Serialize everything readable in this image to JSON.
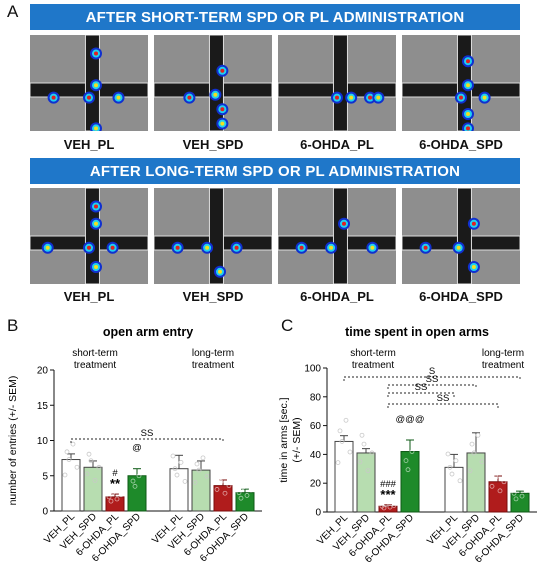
{
  "panel_labels": {
    "a": "A",
    "b": "B",
    "c": "C"
  },
  "top": {
    "banner_short": "AFTER SHORT-TERM SPD OR PL ADMINISTRATION",
    "banner_long": "AFTER LONG-TERM SPD OR PL ADMINISTRATION",
    "labels_short": [
      "VEH_PL",
      "VEH_SPD",
      "6-OHDA_PL",
      "6-OHDA_SPD"
    ],
    "labels_long": [
      "VEH_PL",
      "VEH_SPD",
      "6-OHDA_PL",
      "6-OHDA_SPD"
    ]
  },
  "colors": {
    "veh_pl": "#ffffff",
    "veh_spd": "#b7ddb0",
    "ohda_pl": "#b01c1c",
    "ohda_spd": "#1e8a2a",
    "banner": "#1f77c9"
  },
  "chart_data": [
    {
      "type": "bar",
      "title": "open arm entry",
      "ylabel": "number of entries (+/- SEM)",
      "ylim": [
        0,
        20
      ],
      "yticks": [
        "0",
        "5",
        "10",
        "15",
        "20"
      ],
      "group_labels": [
        "short-term treatment",
        "long-term treatment"
      ],
      "categories": [
        "VEH_PL",
        "VEH_SPD",
        "6-OHDA_PL",
        "6-OHDA_SPD",
        "VEH_PL",
        "VEH_SPD",
        "6-OHDA_PL",
        "6-OHDA_SPD"
      ],
      "values": [
        7.3,
        6.2,
        2.0,
        5.0,
        6.0,
        5.8,
        3.6,
        2.6
      ],
      "errors": [
        0.8,
        0.9,
        0.4,
        1.0,
        1.9,
        1.3,
        0.8,
        0.5
      ],
      "annotations": [
        {
          "bar": 2,
          "text": "#"
        },
        {
          "bar": 2,
          "text": "**"
        },
        {
          "bar": 3,
          "text": "@"
        }
      ],
      "brackets": [
        {
          "from": 0,
          "to": 6,
          "text": "SS"
        }
      ]
    },
    {
      "type": "bar",
      "title": "time spent in open arms",
      "ylabel": "time in arms [sec.] (+/- SEM)",
      "ylim": [
        0,
        100
      ],
      "yticks": [
        "0",
        "20",
        "40",
        "60",
        "80",
        "100"
      ],
      "group_labels": [
        "short-term treatment",
        "long-term treatment"
      ],
      "categories": [
        "VEH_PL",
        "VEH_SPD",
        "6-OHDA_PL",
        "6-OHDA_SPD",
        "VEH_PL",
        "VEH_SPD",
        "6-OHDA_PL",
        "6-OHDA_SPD"
      ],
      "values": [
        49,
        41,
        4,
        42,
        31,
        41,
        21,
        13
      ],
      "errors": [
        4,
        3,
        1,
        8,
        9,
        14,
        4,
        1.5
      ],
      "annotations": [
        {
          "bar": 2,
          "text": "###"
        },
        {
          "bar": 2,
          "text": "***"
        },
        {
          "bar": 3,
          "text": "@@@"
        }
      ],
      "brackets": [
        {
          "from": 0,
          "to": 7,
          "text": "S"
        },
        {
          "from": 2,
          "to": 5,
          "text": "SS"
        },
        {
          "from": 2,
          "to": 4,
          "text": "SS"
        },
        {
          "from": 2,
          "to": 6,
          "text": "SS"
        }
      ]
    }
  ]
}
